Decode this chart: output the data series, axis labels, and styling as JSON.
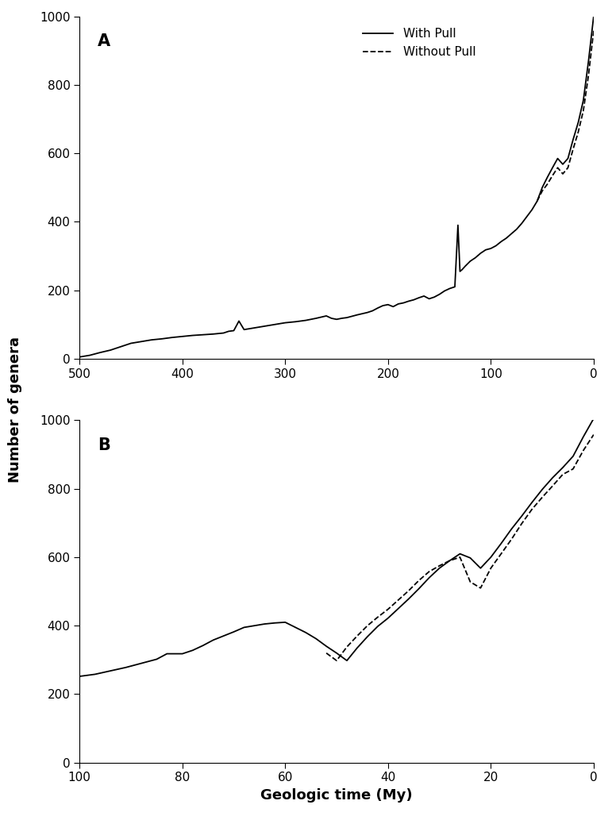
{
  "panel_A": {
    "label": "A",
    "xlim": [
      500,
      0
    ],
    "ylim": [
      0,
      1000
    ],
    "xticks": [
      500,
      400,
      300,
      200,
      100,
      0
    ],
    "yticks": [
      0,
      200,
      400,
      600,
      800,
      1000
    ],
    "with_pull_x": [
      500,
      490,
      480,
      470,
      460,
      450,
      440,
      430,
      420,
      410,
      400,
      390,
      380,
      370,
      360,
      355,
      350,
      345,
      340,
      330,
      320,
      310,
      300,
      290,
      280,
      270,
      260,
      255,
      250,
      245,
      240,
      230,
      220,
      215,
      210,
      205,
      200,
      195,
      190,
      185,
      180,
      175,
      170,
      165,
      160,
      155,
      150,
      145,
      140,
      135,
      132,
      130,
      128,
      125,
      120,
      115,
      110,
      105,
      100,
      95,
      90,
      85,
      80,
      75,
      70,
      65,
      60,
      55,
      50,
      45,
      40,
      35,
      30,
      25,
      20,
      15,
      10,
      5,
      0
    ],
    "with_pull_y": [
      5,
      10,
      18,
      25,
      35,
      45,
      50,
      55,
      58,
      62,
      65,
      68,
      70,
      72,
      75,
      80,
      82,
      110,
      85,
      90,
      95,
      100,
      105,
      108,
      112,
      118,
      125,
      118,
      115,
      118,
      120,
      128,
      135,
      140,
      148,
      155,
      158,
      152,
      160,
      163,
      168,
      172,
      178,
      183,
      175,
      180,
      188,
      198,
      205,
      210,
      390,
      255,
      260,
      270,
      285,
      295,
      308,
      318,
      322,
      330,
      342,
      352,
      365,
      378,
      395,
      415,
      435,
      460,
      500,
      530,
      558,
      585,
      568,
      585,
      640,
      690,
      755,
      870,
      1000
    ],
    "without_pull_x": [
      55,
      50,
      45,
      40,
      35,
      30,
      25,
      20,
      15,
      10,
      5,
      0
    ],
    "without_pull_y": [
      460,
      490,
      510,
      535,
      558,
      540,
      558,
      612,
      662,
      725,
      828,
      958
    ]
  },
  "panel_B": {
    "label": "B",
    "xlim": [
      100,
      0
    ],
    "ylim": [
      0,
      1000
    ],
    "xticks": [
      100,
      80,
      60,
      40,
      20,
      0
    ],
    "yticks": [
      0,
      200,
      400,
      600,
      800,
      1000
    ],
    "with_pull_x": [
      100,
      97,
      94,
      91,
      88,
      85,
      83,
      80,
      78,
      76,
      74,
      72,
      70,
      68,
      66,
      64,
      62,
      60,
      58,
      56,
      54,
      52,
      50,
      48,
      46,
      44,
      42,
      40,
      38,
      36,
      34,
      32,
      30,
      28,
      26,
      24,
      22,
      20,
      18,
      16,
      14,
      12,
      10,
      8,
      6,
      4,
      2,
      0
    ],
    "with_pull_y": [
      252,
      258,
      268,
      278,
      290,
      302,
      318,
      318,
      328,
      342,
      358,
      370,
      382,
      395,
      400,
      405,
      408,
      410,
      395,
      380,
      362,
      340,
      320,
      298,
      335,
      368,
      398,
      422,
      450,
      478,
      508,
      540,
      568,
      590,
      610,
      598,
      568,
      600,
      640,
      682,
      720,
      760,
      798,
      832,
      862,
      895,
      952,
      1005
    ],
    "without_pull_x": [
      52,
      50,
      48,
      46,
      44,
      42,
      40,
      38,
      36,
      34,
      32,
      30,
      28,
      26,
      24,
      22,
      20,
      18,
      16,
      14,
      12,
      10,
      8,
      6,
      4,
      2,
      0
    ],
    "without_pull_y": [
      320,
      298,
      338,
      370,
      400,
      425,
      448,
      475,
      502,
      532,
      558,
      575,
      590,
      600,
      528,
      510,
      568,
      610,
      652,
      698,
      740,
      775,
      808,
      842,
      858,
      912,
      958
    ]
  },
  "ylabel": "Number of genera",
  "xlabel": "Geologic time (My)",
  "legend_with": "With Pull",
  "legend_without": "Without Pull",
  "line_color": "#000000",
  "bg_color": "#ffffff",
  "label_fontsize": 13,
  "tick_fontsize": 11,
  "panel_label_fontsize": 15
}
